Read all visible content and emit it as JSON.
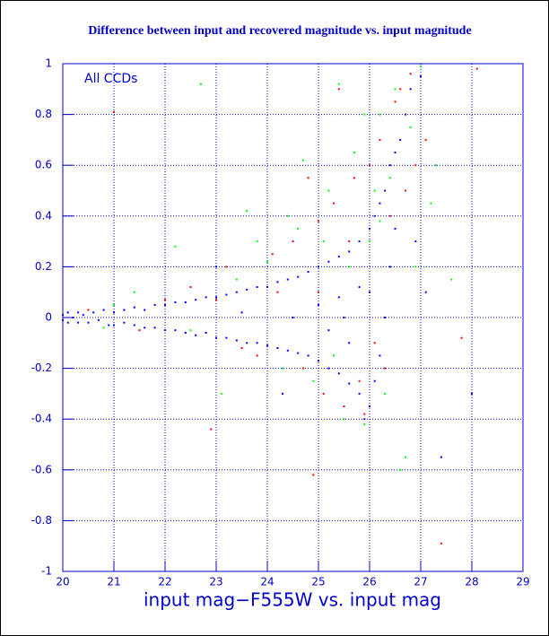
{
  "chart_data": {
    "type": "scatter",
    "title": "Difference between input and recovered magnitude vs. input magnitude",
    "annotation": "All CCDs",
    "x_label": "input mag−F555W vs. input mag",
    "xlim": [
      20,
      29
    ],
    "xticks": [
      20,
      21,
      22,
      23,
      24,
      25,
      26,
      27,
      28,
      29
    ],
    "ylim": [
      -1,
      1
    ],
    "yticks": [
      -1,
      -0.8,
      -0.6,
      -0.4,
      -0.2,
      0,
      0.2,
      0.4,
      0.6,
      0.8,
      1
    ],
    "grid": true,
    "series": [
      {
        "color": "#0000ff",
        "x": [
          20.0,
          20.0,
          20.1,
          20.1,
          20.2,
          20.3,
          20.3,
          20.4,
          20.5,
          20.6,
          20.7,
          20.8,
          20.9,
          21.0,
          21.0,
          21.2,
          21.2,
          21.4,
          21.4,
          21.6,
          21.6,
          21.8,
          21.8,
          22.0,
          22.0,
          22.2,
          22.2,
          22.4,
          22.4,
          22.6,
          22.6,
          22.8,
          22.8,
          23.0,
          23.0,
          23.2,
          23.2,
          23.4,
          23.4,
          23.6,
          23.6,
          23.8,
          23.8,
          24.0,
          24.0,
          24.2,
          24.2,
          24.4,
          24.4,
          24.6,
          24.6,
          24.8,
          24.8,
          25.0,
          25.0,
          25.0,
          25.2,
          25.2,
          25.2,
          25.4,
          25.4,
          25.4,
          25.6,
          25.6,
          25.6,
          25.8,
          25.8,
          25.8,
          26.0,
          26.0,
          26.0,
          26.1,
          26.1,
          26.2,
          26.2,
          26.3,
          26.3,
          26.4,
          26.4,
          26.5,
          26.5,
          26.6,
          26.7,
          26.8,
          27.0,
          25.5,
          24.5,
          23.5,
          25.9,
          26.9,
          27.1,
          28.0,
          24.3,
          23.0,
          27.4
        ],
        "y": [
          0.01,
          -0.01,
          0.02,
          -0.02,
          0.0,
          0.02,
          -0.02,
          0.01,
          -0.02,
          0.02,
          -0.01,
          0.03,
          -0.03,
          0.02,
          -0.03,
          0.03,
          -0.02,
          0.04,
          -0.03,
          0.03,
          -0.04,
          0.05,
          -0.04,
          0.05,
          -0.05,
          0.06,
          -0.05,
          0.06,
          -0.06,
          0.07,
          -0.07,
          0.08,
          -0.06,
          0.08,
          -0.08,
          0.09,
          -0.08,
          0.1,
          -0.09,
          0.11,
          -0.1,
          0.12,
          -0.1,
          0.12,
          -0.11,
          0.14,
          -0.12,
          0.15,
          -0.13,
          0.16,
          -0.14,
          0.18,
          -0.15,
          0.2,
          -0.17,
          0.05,
          0.22,
          -0.2,
          -0.05,
          0.24,
          -0.22,
          0.08,
          0.26,
          -0.26,
          -0.1,
          0.3,
          -0.3,
          0.12,
          0.35,
          -0.35,
          0.1,
          0.4,
          -0.25,
          0.45,
          -0.15,
          0.5,
          0.0,
          0.6,
          0.2,
          0.65,
          0.35,
          0.7,
          0.8,
          0.9,
          0.95,
          0.0,
          0.0,
          0.02,
          -0.4,
          0.3,
          0.1,
          -0.3,
          -0.3,
          0.2,
          -0.55
        ]
      },
      {
        "color": "#ff0000",
        "x": [
          21.0,
          22.5,
          23.2,
          23.8,
          24.1,
          24.5,
          24.7,
          25.0,
          25.1,
          25.3,
          25.5,
          25.7,
          25.9,
          26.0,
          26.2,
          26.3,
          26.5,
          26.6,
          26.8,
          27.1,
          27.4,
          27.8,
          26.9,
          25.4,
          24.8,
          22.0,
          21.5,
          20.5,
          23.5,
          24.9,
          26.4,
          25.6,
          22.9,
          26.1,
          24.2,
          23.0,
          26.7,
          25.8,
          25.0,
          28.1
        ],
        "y": [
          0.81,
          0.12,
          0.2,
          -0.15,
          0.25,
          0.3,
          -0.2,
          0.38,
          -0.3,
          0.45,
          -0.35,
          0.55,
          -0.38,
          0.6,
          0.7,
          -0.2,
          0.85,
          0.9,
          0.96,
          0.7,
          -0.89,
          -0.08,
          0.6,
          0.9,
          0.55,
          0.07,
          -0.05,
          0.03,
          -0.12,
          -0.62,
          0.4,
          0.3,
          -0.44,
          -0.1,
          0.1,
          0.07,
          0.5,
          -0.25,
          0.1,
          0.98
        ]
      },
      {
        "color": "#00ff00",
        "x": [
          21.4,
          22.2,
          22.7,
          23.1,
          23.6,
          24.0,
          24.4,
          24.7,
          24.9,
          25.2,
          25.4,
          25.5,
          25.7,
          25.9,
          26.0,
          26.2,
          26.3,
          26.4,
          26.5,
          26.7,
          26.8,
          27.0,
          27.3,
          27.6,
          26.9,
          25.1,
          24.3,
          23.8,
          22.5,
          21.0,
          20.8,
          26.6,
          25.6,
          24.6,
          26.1,
          25.3,
          23.4,
          25.9,
          26.2,
          27.2
        ],
        "y": [
          0.1,
          0.28,
          0.92,
          -0.3,
          0.42,
          0.22,
          0.4,
          0.62,
          -0.25,
          0.5,
          0.92,
          -0.4,
          0.65,
          -0.42,
          0.3,
          0.8,
          -0.3,
          0.55,
          0.9,
          -0.55,
          0.75,
          0.99,
          0.6,
          0.15,
          0.2,
          0.3,
          -0.2,
          0.3,
          -0.05,
          0.05,
          -0.04,
          -0.6,
          0.2,
          0.35,
          0.5,
          -0.15,
          0.15,
          0.8,
          0.38,
          0.45
        ]
      }
    ]
  }
}
